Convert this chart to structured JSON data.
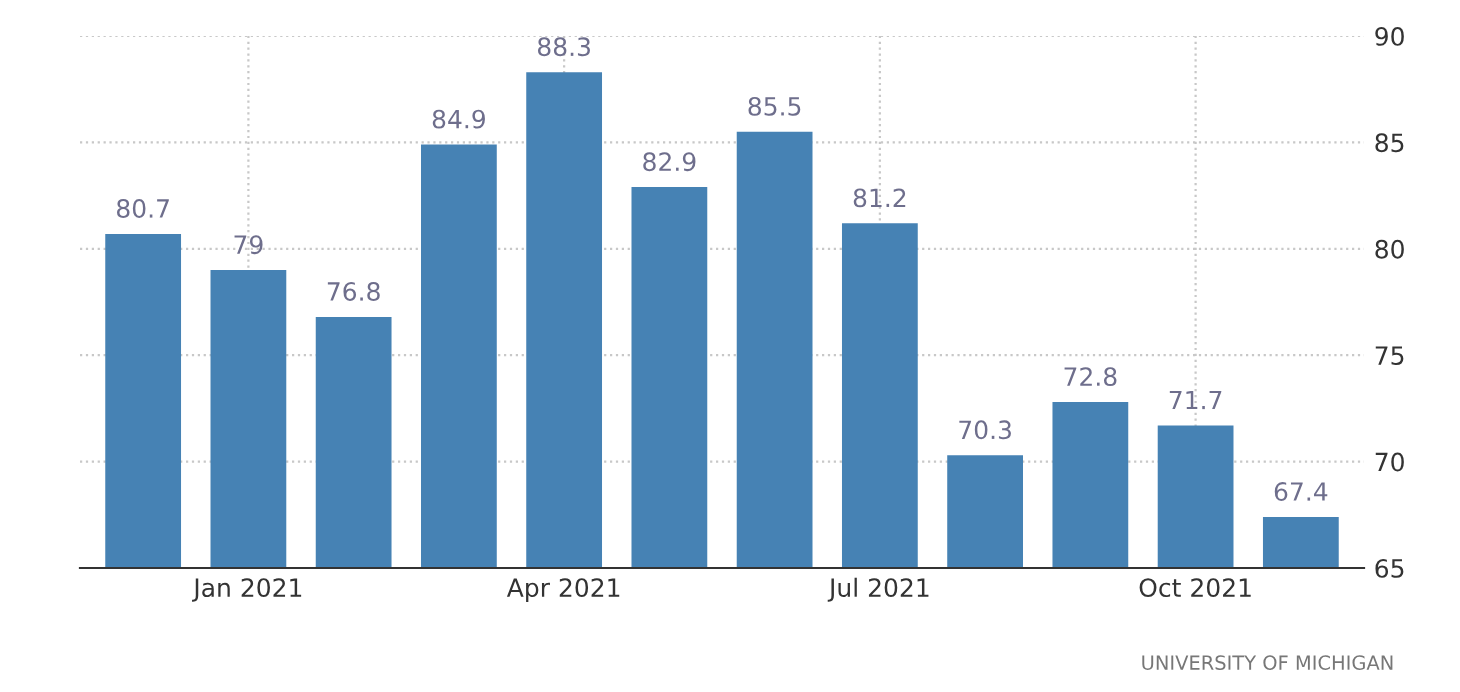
{
  "chart_data": {
    "type": "bar",
    "categories": [
      null,
      "Jan 2021",
      null,
      null,
      "Apr 2021",
      null,
      null,
      "Jul 2021",
      null,
      null,
      "Oct 2021",
      null
    ],
    "values": [
      80.7,
      79,
      76.8,
      84.9,
      88.3,
      82.9,
      85.5,
      81.2,
      70.3,
      72.8,
      71.7,
      67.4
    ],
    "color": "#4682b4",
    "ylim": [
      65,
      90
    ],
    "yticks": [
      65,
      70,
      75,
      80,
      85,
      90
    ],
    "grid": true,
    "data_labels": true,
    "annotations": [
      "UNIVERSITY OF MICHIGAN"
    ]
  }
}
